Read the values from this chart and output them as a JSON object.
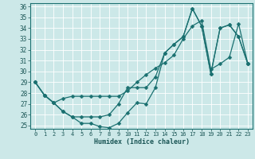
{
  "xlabel": "Humidex (Indice chaleur)",
  "bg_color": "#cce8e8",
  "grid_color": "#ffffff",
  "line_color": "#1a7070",
  "xlim": [
    -0.5,
    23.5
  ],
  "ylim": [
    24.7,
    36.3
  ],
  "xticks": [
    0,
    1,
    2,
    3,
    4,
    5,
    6,
    7,
    8,
    9,
    10,
    11,
    12,
    13,
    14,
    15,
    16,
    17,
    18,
    19,
    20,
    21,
    22,
    23
  ],
  "yticks": [
    25,
    26,
    27,
    28,
    29,
    30,
    31,
    32,
    33,
    34,
    35,
    36
  ],
  "line1_x": [
    0,
    1,
    2,
    3,
    4,
    5,
    6,
    7,
    8,
    9,
    10,
    11,
    12,
    13,
    14,
    15,
    16,
    17,
    18,
    19,
    20,
    21,
    22,
    23
  ],
  "line1_y": [
    29.0,
    27.8,
    27.1,
    26.3,
    25.8,
    25.8,
    25.8,
    25.8,
    26.0,
    27.0,
    28.5,
    28.5,
    28.5,
    29.5,
    31.7,
    32.5,
    33.2,
    35.8,
    34.2,
    29.8,
    34.0,
    34.3,
    33.2,
    30.7
  ],
  "line2_x": [
    0,
    1,
    2,
    3,
    4,
    5,
    6,
    7,
    8,
    9,
    10,
    11,
    12,
    13,
    14,
    15,
    16,
    17,
    18,
    19,
    20,
    21,
    22,
    23
  ],
  "line2_y": [
    29.0,
    27.8,
    27.1,
    27.5,
    27.7,
    27.7,
    27.7,
    27.7,
    27.7,
    27.7,
    28.2,
    29.0,
    29.7,
    30.3,
    30.8,
    31.5,
    33.0,
    34.2,
    34.7,
    30.2,
    30.7,
    31.3,
    34.4,
    30.7
  ],
  "line3_x": [
    0,
    1,
    2,
    3,
    4,
    5,
    6,
    7,
    8,
    9,
    10,
    11,
    12,
    13,
    14,
    15,
    16,
    17,
    18,
    19,
    20,
    21,
    22,
    23
  ],
  "line3_y": [
    29.0,
    27.8,
    27.1,
    26.3,
    25.8,
    25.2,
    25.2,
    24.9,
    24.8,
    25.2,
    26.2,
    27.1,
    27.0,
    28.5,
    31.7,
    32.5,
    33.2,
    35.8,
    34.2,
    29.8,
    34.0,
    34.3,
    33.2,
    30.7
  ]
}
